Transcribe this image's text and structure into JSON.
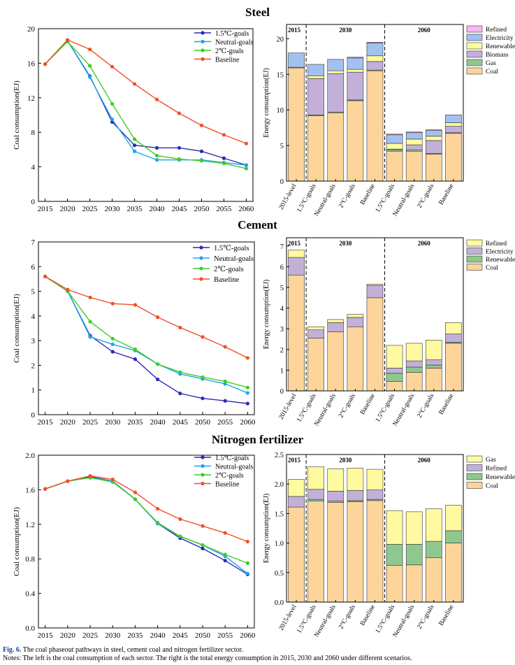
{
  "sections": [
    {
      "title": "Steel",
      "line": {
        "type": "line",
        "ylabel": "Coal consumption(EJ)",
        "x": [
          2015,
          2020,
          2025,
          2030,
          2035,
          2040,
          2045,
          2050,
          2055,
          2060
        ],
        "ylim": [
          0,
          20
        ],
        "yticks": [
          0,
          4,
          8,
          12,
          16,
          20
        ],
        "ytick_labels": [
          "0",
          "4",
          "8",
          "12",
          "16",
          "20"
        ],
        "series": [
          {
            "name": "1.5℃-goals",
            "color": "#2b2ab8",
            "values": [
              15.9,
              18.6,
              14.5,
              9.2,
              6.5,
              6.2,
              6.2,
              5.8,
              5.0,
              4.2
            ]
          },
          {
            "name": "Neutral-goals",
            "color": "#1ea5e6",
            "values": [
              15.9,
              18.6,
              14.4,
              9.5,
              5.8,
              4.8,
              4.8,
              4.8,
              4.5,
              4.2
            ]
          },
          {
            "name": "2℃-goals",
            "color": "#3fcc2a",
            "values": [
              15.9,
              18.5,
              15.7,
              11.3,
              7.2,
              5.3,
              4.9,
              4.7,
              4.4,
              3.8
            ]
          },
          {
            "name": "Baseline",
            "color": "#f0502a",
            "values": [
              15.9,
              18.7,
              17.6,
              15.6,
              13.6,
              11.8,
              10.2,
              8.8,
              7.7,
              6.7
            ]
          }
        ]
      },
      "bar": {
        "type": "bar",
        "ylabel": "Energy consumption(EJ)",
        "ylim": [
          0,
          22
        ],
        "yticks": [
          0,
          5,
          10,
          15,
          20
        ],
        "ytick_labels": [
          "0",
          "5",
          "10",
          "15",
          "20"
        ],
        "groups": [
          {
            "label": "2015",
            "count": 1
          },
          {
            "label": "2030",
            "count": 4
          },
          {
            "label": "2060",
            "count": 4
          }
        ],
        "categories": [
          "2015-level",
          "1.5°C-goals",
          "Neutral-goals",
          "2°C-goals",
          "Baseline",
          "1.5°C-goals",
          "Neutral-goals",
          "2°C-goals",
          "Baseline"
        ],
        "series": [
          {
            "name": "Coal",
            "color": "#fdd49a",
            "values": [
              15.9,
              9.2,
              9.6,
              11.3,
              15.5,
              4.2,
              4.2,
              3.8,
              6.7
            ]
          },
          {
            "name": "Gas",
            "color": "#8fc88f",
            "values": [
              0.1,
              0.1,
              0.1,
              0.1,
              0.1,
              0.2,
              0.2,
              0.1,
              0.1
            ]
          },
          {
            "name": "Biomass",
            "color": "#c2b0d9",
            "values": [
              0,
              5.1,
              5.4,
              3.9,
              1.2,
              0.1,
              0.7,
              1.8,
              0.9
            ]
          },
          {
            "name": "Renewable",
            "color": "#fffaa0",
            "values": [
              0,
              0.4,
              0.4,
              0.4,
              0.8,
              0.8,
              0.8,
              0.6,
              0.5
            ]
          },
          {
            "name": "Electricity",
            "color": "#a3c1f0",
            "values": [
              2.0,
              1.6,
              1.6,
              1.6,
              1.8,
              1.2,
              0.9,
              0.8,
              1.1
            ]
          },
          {
            "name": "Refined",
            "color": "#f7b8f0",
            "values": [
              0,
              0,
              0,
              0.1,
              0.1,
              0.1,
              0.1,
              0.1,
              0
            ]
          }
        ]
      }
    },
    {
      "title": "Cement",
      "line": {
        "type": "line",
        "ylabel": "Coal consumption(EJ)",
        "x": [
          2015,
          2020,
          2025,
          2030,
          2035,
          2040,
          2045,
          2050,
          2055,
          2060
        ],
        "ylim": [
          0,
          7
        ],
        "yticks": [
          0,
          1,
          2,
          3,
          4,
          5,
          6,
          7
        ],
        "ytick_labels": [
          "0",
          "1",
          "2",
          "3",
          "4",
          "5",
          "6",
          "7"
        ],
        "series": [
          {
            "name": "1.5℃-goals",
            "color": "#2b2ab8",
            "values": [
              5.6,
              5.0,
              3.2,
              2.55,
              2.25,
              1.43,
              0.86,
              0.66,
              0.56,
              0.45
            ]
          },
          {
            "name": "Neutral-goals",
            "color": "#1ea5e6",
            "values": [
              5.6,
              5.0,
              3.15,
              2.85,
              2.6,
              2.05,
              1.65,
              1.45,
              1.25,
              0.88
            ]
          },
          {
            "name": "2℃-goals",
            "color": "#3fcc2a",
            "values": [
              5.6,
              5.0,
              3.77,
              3.08,
              2.65,
              2.05,
              1.72,
              1.52,
              1.35,
              1.1
            ]
          },
          {
            "name": "Baseline",
            "color": "#f0502a",
            "values": [
              5.6,
              5.07,
              4.75,
              4.5,
              4.45,
              3.95,
              3.53,
              3.15,
              2.75,
              2.3
            ]
          }
        ]
      },
      "bar": {
        "type": "bar",
        "ylabel": "Energy consumption(EJ)",
        "ylim": [
          0,
          7.4
        ],
        "yticks": [
          0,
          1,
          2,
          3,
          4,
          5,
          6,
          7
        ],
        "ytick_labels": [
          "0",
          "1",
          "2",
          "3",
          "4",
          "5",
          "6",
          "7"
        ],
        "groups": [
          {
            "label": "2015",
            "count": 1
          },
          {
            "label": "2030",
            "count": 4
          },
          {
            "label": "2060",
            "count": 4
          }
        ],
        "categories": [
          "2015-level",
          "1.5°C-goals",
          "Neutral-goals",
          "2°C-goals",
          "Baseline",
          "1.5°C-goals",
          "Neutral-goals",
          "2°C-goals",
          "Baseline"
        ],
        "series": [
          {
            "name": "Coal",
            "color": "#fdd49a",
            "values": [
              5.6,
              2.55,
              2.85,
              3.1,
              4.5,
              0.45,
              0.9,
              1.1,
              2.3
            ]
          },
          {
            "name": "Renewable",
            "color": "#8fc88f",
            "values": [
              0,
              0,
              0,
              0,
              0,
              0.4,
              0.25,
              0.15,
              0.05
            ]
          },
          {
            "name": "Electricity",
            "color": "#c2b0d9",
            "values": [
              0.85,
              0.4,
              0.45,
              0.45,
              0.6,
              0.25,
              0.3,
              0.25,
              0.4
            ]
          },
          {
            "name": "Refined",
            "color": "#fffaa0",
            "values": [
              0.35,
              0.15,
              0.15,
              0.15,
              0.05,
              1.1,
              0.85,
              0.95,
              0.55
            ]
          }
        ]
      }
    },
    {
      "title": "Nitrogen fertilizer",
      "line": {
        "type": "line",
        "ylabel": "Coal consumption(EJ)",
        "x": [
          2015,
          2020,
          2025,
          2030,
          2035,
          2040,
          2045,
          2050,
          2055,
          2060
        ],
        "ylim": [
          0,
          2.0
        ],
        "yticks": [
          0,
          0.4,
          0.8,
          1.2,
          1.6,
          2.0
        ],
        "ytick_labels": [
          "0.0",
          "0.4",
          "0.8",
          "1.2",
          "1.6",
          "2.0"
        ],
        "series": [
          {
            "name": "1.5℃-goals",
            "color": "#2b2ab8",
            "values": [
              1.61,
              1.7,
              1.75,
              1.7,
              1.49,
              1.21,
              1.04,
              0.92,
              0.78,
              0.62
            ]
          },
          {
            "name": "Neutral-goals",
            "color": "#1ea5e6",
            "values": [
              1.61,
              1.7,
              1.74,
              1.7,
              1.49,
              1.21,
              1.06,
              0.96,
              0.83,
              0.63
            ]
          },
          {
            "name": "2℃-goals",
            "color": "#3fcc2a",
            "values": [
              1.61,
              1.7,
              1.74,
              1.69,
              1.49,
              1.22,
              1.06,
              0.96,
              0.85,
              0.75
            ]
          },
          {
            "name": "Baseline",
            "color": "#f0502a",
            "values": [
              1.61,
              1.7,
              1.76,
              1.72,
              1.57,
              1.38,
              1.26,
              1.18,
              1.1,
              1.0
            ]
          }
        ]
      },
      "bar": {
        "type": "bar",
        "ylabel": "Energy consumption(EJ)",
        "ylim": [
          0,
          2.5
        ],
        "yticks": [
          0,
          0.5,
          1.0,
          1.5,
          2.0,
          2.5
        ],
        "ytick_labels": [
          "0.0",
          "0.5",
          "1.0",
          "1.5",
          "2.0",
          "2.5"
        ],
        "groups": [
          {
            "label": "2015",
            "count": 1
          },
          {
            "label": "2030",
            "count": 4
          },
          {
            "label": "2060",
            "count": 4
          }
        ],
        "categories": [
          "2015-level",
          "1.5°C-goals",
          "Neutral-goals",
          "2°C-goals",
          "Baseline",
          "1.5°C-goals",
          "Neutral-goals",
          "2°C-goals",
          "Baseline"
        ],
        "series": [
          {
            "name": "Coal",
            "color": "#fdd49a",
            "values": [
              1.61,
              1.71,
              1.69,
              1.7,
              1.72,
              0.62,
              0.63,
              0.75,
              1.0
            ]
          },
          {
            "name": "Renewable",
            "color": "#8fc88f",
            "values": [
              0,
              0.03,
              0.02,
              0.02,
              0.02,
              0.36,
              0.35,
              0.28,
              0.21
            ]
          },
          {
            "name": "Refined",
            "color": "#c2b0d9",
            "values": [
              0.18,
              0.17,
              0.17,
              0.17,
              0.16,
              0,
              0,
              0,
              0
            ]
          },
          {
            "name": "Gas",
            "color": "#fffaa0",
            "values": [
              0.29,
              0.38,
              0.38,
              0.38,
              0.35,
              0.57,
              0.55,
              0.55,
              0.43
            ]
          }
        ]
      }
    }
  ],
  "caption": {
    "fig_label": "Fig. 6.",
    "fig_text": "The coal phaseout pathways in steel, cement coal and nitrogen fertilizer sector.",
    "notes": "Notes: The left is the coal consumption of each sector. The right is the total energy consumption in 2015, 2030 and 2060 under different scenarios."
  }
}
